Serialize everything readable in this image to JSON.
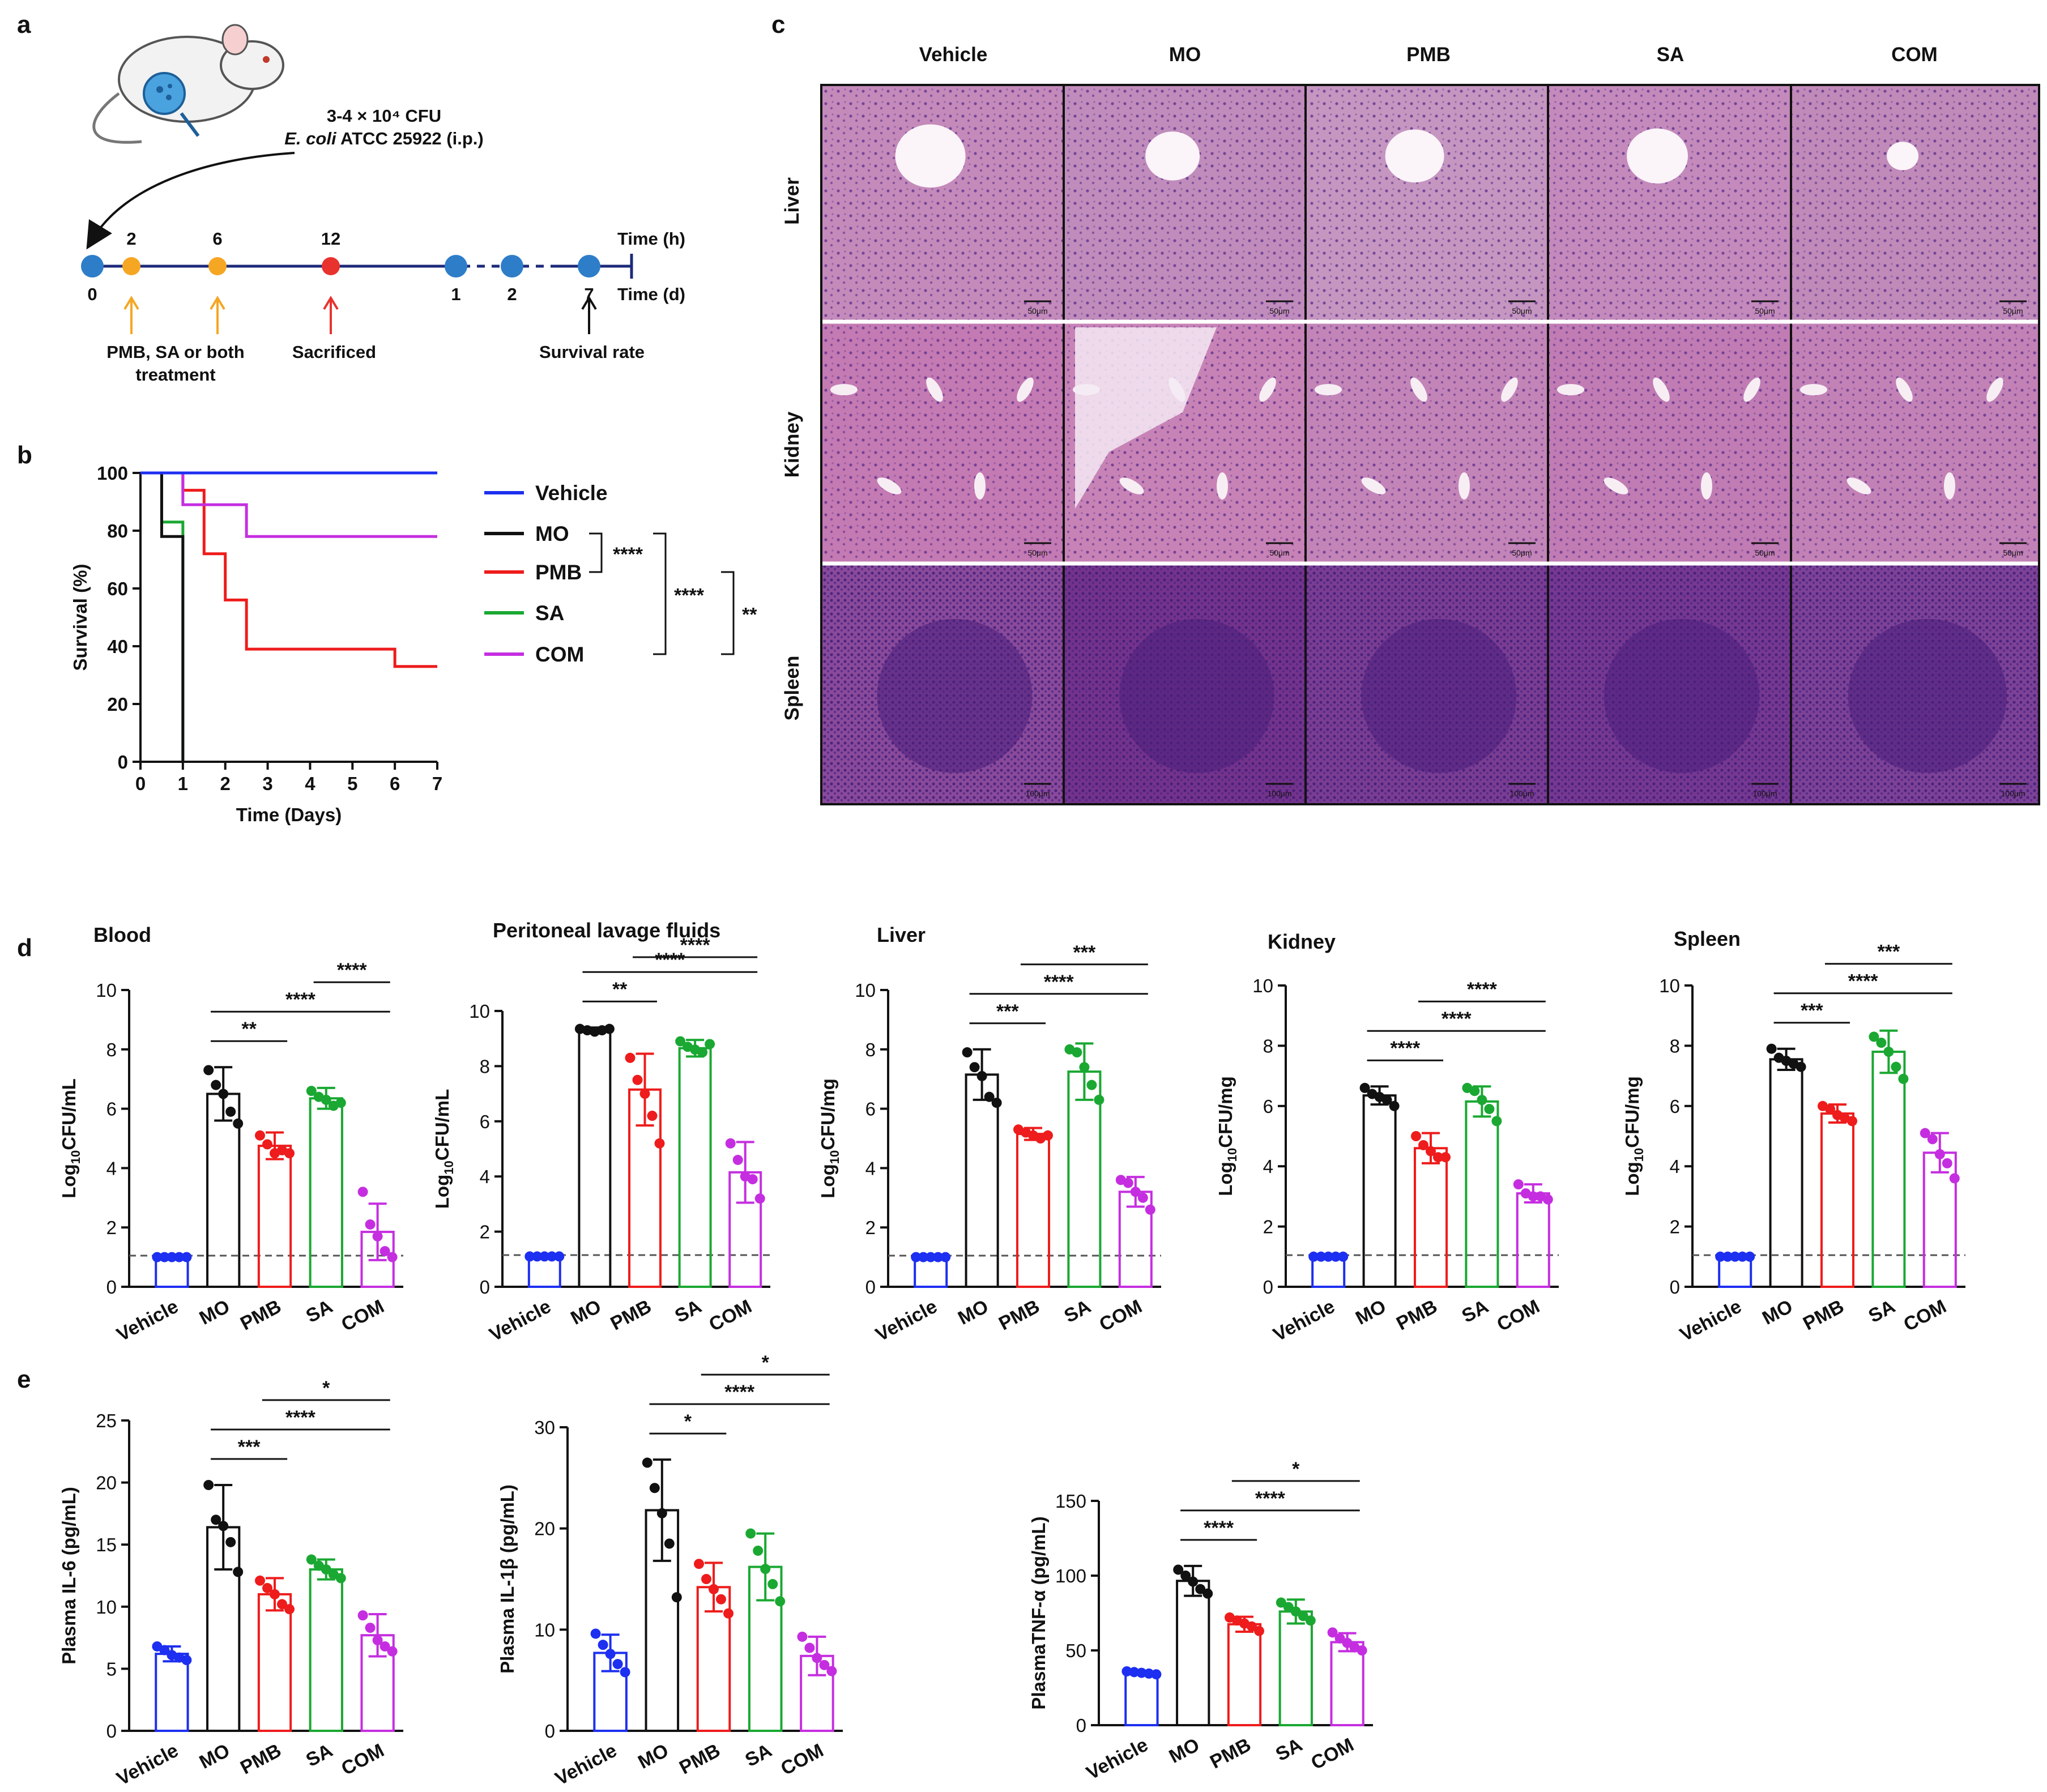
{
  "panel_labels": {
    "a": "a",
    "b": "b",
    "c": "c",
    "d": "d",
    "e": "e"
  },
  "colors": {
    "Vehicle": "#1d2ff0",
    "MO": "#111111",
    "PMB": "#ee1c1c",
    "SA": "#1aa832",
    "COM": "#c52ee0",
    "timeline": "#1d2a7a",
    "dot_blue": "#2e7dc9",
    "dot_orange": "#f5a623",
    "dot_red": "#e8322e",
    "tissue": "#a4488f"
  },
  "icons": {
    "mouse": "mouse-icon",
    "arrow": "arrow-up-icon"
  },
  "panel_a": {
    "infection_line1": "3-4 × 10⁴ CFU",
    "infection_species": "E. coli",
    "infection_strain": " ATCC 25922 (i.p.)",
    "timeline_hours": [
      "2",
      "6",
      "12"
    ],
    "timeline_days": [
      "0",
      "1",
      "2",
      "7"
    ],
    "time_h_label": "Time (h)",
    "time_d_label": "Time (d)",
    "treatment_line1": "PMB, SA or both",
    "treatment_line2": "treatment",
    "sacrificed_label": "Sacrificed",
    "survival_label": "Survival rate"
  },
  "panel_c": {
    "columns": [
      "Vehicle",
      "MO",
      "PMB",
      "SA",
      "COM"
    ],
    "rows": [
      "Liver",
      "Kidney",
      "Spleen"
    ],
    "scale_bars": [
      "50μm",
      "50μm",
      "100μm"
    ]
  },
  "chart_data": [
    {
      "id": "survival",
      "type": "line",
      "title": "",
      "xlabel": "Time (Days)",
      "ylabel": "Survival (%)",
      "xlim": [
        0,
        7
      ],
      "ylim": [
        0,
        100
      ],
      "xticks": [
        "0",
        "1",
        "2",
        "3",
        "4",
        "5",
        "6",
        "7"
      ],
      "yticks": [
        "0",
        "20",
        "40",
        "60",
        "80",
        "100"
      ],
      "series": [
        {
          "name": "Vehicle",
          "color": "#1d2ff0",
          "steps": [
            [
              0,
              100
            ],
            [
              7,
              100
            ]
          ]
        },
        {
          "name": "MO",
          "color": "#111111",
          "steps": [
            [
              0,
              100
            ],
            [
              0.5,
              100
            ],
            [
              0.5,
              78
            ],
            [
              1,
              78
            ],
            [
              1,
              0
            ]
          ]
        },
        {
          "name": "PMB",
          "color": "#ee1c1c",
          "steps": [
            [
              0,
              100
            ],
            [
              1,
              100
            ],
            [
              1,
              94
            ],
            [
              1.5,
              94
            ],
            [
              1.5,
              72
            ],
            [
              2,
              72
            ],
            [
              2,
              56
            ],
            [
              2.5,
              56
            ],
            [
              2.5,
              39
            ],
            [
              6,
              39
            ],
            [
              6,
              33
            ],
            [
              7,
              33
            ]
          ]
        },
        {
          "name": "SA",
          "color": "#1aa832",
          "steps": [
            [
              0,
              100
            ],
            [
              0.5,
              100
            ],
            [
              0.5,
              83
            ],
            [
              1,
              83
            ],
            [
              1,
              0
            ]
          ]
        },
        {
          "name": "COM",
          "color": "#c52ee0",
          "steps": [
            [
              0,
              100
            ],
            [
              1,
              100
            ],
            [
              1,
              89
            ],
            [
              2.5,
              89
            ],
            [
              2.5,
              78
            ],
            [
              7,
              78
            ]
          ]
        }
      ],
      "legend": [
        "Vehicle",
        "MO",
        "PMB",
        "SA",
        "COM"
      ],
      "significance": [
        "****",
        "****",
        "**"
      ]
    },
    {
      "id": "d_blood",
      "type": "bar",
      "title": "Blood",
      "ylabel": "Log10CFU/mL",
      "ylim": [
        0,
        10
      ],
      "yticks": [
        "0",
        "2",
        "4",
        "6",
        "8",
        "10"
      ],
      "categories": [
        "Vehicle",
        "MO",
        "PMB",
        "SA",
        "COM"
      ],
      "values": [
        1.0,
        6.5,
        4.75,
        6.35,
        1.85
      ],
      "errors": [
        0,
        0.9,
        0.45,
        0.35,
        0.95
      ],
      "points": [
        [
          1,
          1,
          1,
          1,
          1
        ],
        [
          7.3,
          6.8,
          6.5,
          5.9,
          5.5
        ],
        [
          5.1,
          4.8,
          4.5,
          4.6,
          4.5
        ],
        [
          6.6,
          6.4,
          6.3,
          6.1,
          6.2
        ],
        [
          3.2,
          2.1,
          1.7,
          1.2,
          1.0
        ]
      ],
      "threshold": 1.05,
      "sig": [
        {
          "a": 1,
          "b": 2,
          "label": "**"
        },
        {
          "a": 1,
          "b": 4,
          "label": "****"
        },
        {
          "a": 3,
          "b": 4,
          "label": "****"
        }
      ]
    },
    {
      "id": "d_plf",
      "type": "bar",
      "title": "Peritoneal lavage fluids",
      "ylabel": "Log10CFU/mL",
      "ylim": [
        0,
        10
      ],
      "yticks": [
        "0",
        "2",
        "4",
        "6",
        "8",
        "10"
      ],
      "categories": [
        "Vehicle",
        "MO",
        "PMB",
        "SA",
        "COM"
      ],
      "values": [
        1.1,
        9.3,
        7.15,
        8.65,
        4.15
      ],
      "errors": [
        0,
        0.1,
        1.3,
        0.3,
        1.1
      ],
      "points": [
        [
          1.1,
          1.1,
          1.1,
          1.1,
          1.1
        ],
        [
          9.35,
          9.3,
          9.25,
          9.3,
          9.35
        ],
        [
          8.3,
          7.5,
          7.0,
          6.2,
          5.2
        ],
        [
          8.9,
          8.7,
          8.6,
          8.5,
          8.8
        ],
        [
          5.2,
          4.6,
          4.0,
          3.9,
          3.2
        ]
      ],
      "threshold": 1.15,
      "sig": [
        {
          "a": 1,
          "b": 2,
          "label": "**"
        },
        {
          "a": 1,
          "b": 4,
          "label": "****"
        },
        {
          "a": 2,
          "b": 4,
          "label": "****"
        }
      ]
    },
    {
      "id": "d_liver",
      "type": "bar",
      "title": "Liver",
      "ylabel": "Log10CFU/mg",
      "ylim": [
        0,
        10
      ],
      "yticks": [
        "0",
        "2",
        "4",
        "6",
        "8",
        "10"
      ],
      "categories": [
        "Vehicle",
        "MO",
        "PMB",
        "SA",
        "COM"
      ],
      "values": [
        1.0,
        7.15,
        5.15,
        7.25,
        3.2
      ],
      "errors": [
        0,
        0.85,
        0.2,
        0.95,
        0.5
      ],
      "points": [
        [
          1,
          1,
          1,
          1,
          1
        ],
        [
          7.9,
          7.4,
          7.1,
          6.4,
          6.2
        ],
        [
          5.3,
          5.2,
          5.1,
          5.0,
          5.1
        ],
        [
          8.0,
          7.9,
          7.4,
          6.8,
          6.3
        ],
        [
          3.6,
          3.5,
          3.2,
          3.0,
          2.6
        ]
      ],
      "threshold": 1.05,
      "sig": [
        {
          "a": 1,
          "b": 2,
          "label": "***"
        },
        {
          "a": 1,
          "b": 4,
          "label": "****"
        },
        {
          "a": 2,
          "b": 4,
          "label": "***"
        }
      ]
    },
    {
      "id": "d_kidney",
      "type": "bar",
      "title": "Kidney",
      "ylabel": "Log10CFU/mg",
      "ylim": [
        0,
        10
      ],
      "yticks": [
        "0",
        "2",
        "4",
        "6",
        "8",
        "10"
      ],
      "categories": [
        "Vehicle",
        "MO",
        "PMB",
        "SA",
        "COM"
      ],
      "values": [
        1.0,
        6.35,
        4.6,
        6.15,
        3.1
      ],
      "errors": [
        0,
        0.3,
        0.5,
        0.5,
        0.3
      ],
      "points": [
        [
          1,
          1,
          1,
          1,
          1
        ],
        [
          6.6,
          6.4,
          6.3,
          6.2,
          6.0
        ],
        [
          5.0,
          4.7,
          4.5,
          4.3,
          4.3
        ],
        [
          6.6,
          6.5,
          6.2,
          5.9,
          5.5
        ],
        [
          3.4,
          3.1,
          3.0,
          3.0,
          2.9
        ]
      ],
      "threshold": 1.05,
      "sig": [
        {
          "a": 1,
          "b": 2,
          "label": "****"
        },
        {
          "a": 1,
          "b": 4,
          "label": "****"
        },
        {
          "a": 2,
          "b": 4,
          "label": "****"
        }
      ]
    },
    {
      "id": "d_spleen",
      "type": "bar",
      "title": "Spleen",
      "ylabel": "Log10CFU/mg",
      "ylim": [
        0,
        10
      ],
      "yticks": [
        "0",
        "2",
        "4",
        "6",
        "8",
        "10"
      ],
      "categories": [
        "Vehicle",
        "MO",
        "PMB",
        "SA",
        "COM"
      ],
      "values": [
        1.0,
        7.55,
        5.75,
        7.8,
        4.45
      ],
      "errors": [
        0,
        0.35,
        0.3,
        0.7,
        0.65
      ],
      "points": [
        [
          1,
          1,
          1,
          1,
          1
        ],
        [
          7.9,
          7.6,
          7.5,
          7.4,
          7.3
        ],
        [
          6.0,
          5.9,
          5.7,
          5.6,
          5.5
        ],
        [
          8.3,
          8.1,
          7.8,
          7.3,
          6.9
        ],
        [
          5.1,
          4.9,
          4.4,
          4.1,
          3.6
        ]
      ],
      "threshold": 1.05,
      "sig": [
        {
          "a": 1,
          "b": 2,
          "label": "***"
        },
        {
          "a": 1,
          "b": 4,
          "label": "****"
        },
        {
          "a": 2,
          "b": 4,
          "label": "***"
        }
      ]
    },
    {
      "id": "e_il6",
      "type": "bar",
      "title": "",
      "ylabel": "Plasma IL-6 (pg/mL)",
      "ylim": [
        0,
        25
      ],
      "yticks": [
        "0",
        "5",
        "10",
        "15",
        "20",
        "25"
      ],
      "categories": [
        "Vehicle",
        "MO",
        "PMB",
        "SA",
        "COM"
      ],
      "values": [
        6.2,
        16.4,
        11.0,
        13.0,
        7.7
      ],
      "errors": [
        0.6,
        3.4,
        1.3,
        0.8,
        1.7
      ],
      "points": [
        [
          6.8,
          6.5,
          6.1,
          5.9,
          5.7
        ],
        [
          19.8,
          17.0,
          16.5,
          15.2,
          12.8
        ],
        [
          12.1,
          11.5,
          11.0,
          10.2,
          9.8
        ],
        [
          13.8,
          13.3,
          13.0,
          12.6,
          12.3
        ],
        [
          9.3,
          8.3,
          7.3,
          6.8,
          6.4
        ]
      ],
      "threshold": null,
      "sig": [
        {
          "a": 1,
          "b": 2,
          "label": "***"
        },
        {
          "a": 1,
          "b": 4,
          "label": "****"
        },
        {
          "a": 2,
          "b": 4,
          "label": "*"
        }
      ]
    },
    {
      "id": "e_il1b",
      "type": "bar",
      "title": "",
      "ylabel": "Plasma IL-1β (pg/mL)",
      "ylim": [
        0,
        30
      ],
      "yticks": [
        "0",
        "10",
        "20",
        "30"
      ],
      "categories": [
        "Vehicle",
        "MO",
        "PMB",
        "SA",
        "COM"
      ],
      "values": [
        7.7,
        21.8,
        14.2,
        16.2,
        7.4
      ],
      "errors": [
        1.8,
        5.0,
        2.4,
        3.3,
        1.9
      ],
      "points": [
        [
          9.6,
          8.5,
          7.6,
          6.6,
          5.8
        ],
        [
          26.5,
          24.0,
          21.5,
          18.5,
          13.2
        ],
        [
          16.5,
          15.0,
          14.0,
          13.0,
          11.6
        ],
        [
          19.5,
          17.8,
          16.0,
          14.5,
          12.8
        ],
        [
          9.3,
          8.2,
          7.2,
          6.5,
          5.9
        ]
      ],
      "threshold": null,
      "sig": [
        {
          "a": 1,
          "b": 2,
          "label": "*"
        },
        {
          "a": 1,
          "b": 4,
          "label": "****"
        },
        {
          "a": 2,
          "b": 4,
          "label": "*"
        }
      ]
    },
    {
      "id": "e_tnf",
      "type": "bar",
      "title": "",
      "ylabel": "PlasmaTNF-α (pg/mL)",
      "ylim": [
        0,
        150
      ],
      "yticks": [
        "0",
        "50",
        "100",
        "150"
      ],
      "categories": [
        "Vehicle",
        "MO",
        "PMB",
        "SA",
        "COM"
      ],
      "values": [
        35.0,
        96.5,
        67.5,
        76.0,
        55.5
      ],
      "errors": [
        1.2,
        10.0,
        5.0,
        8.0,
        6.0
      ],
      "points": [
        [
          36,
          35.5,
          35,
          34.5,
          34
        ],
        [
          104,
          100,
          96,
          91,
          88
        ],
        [
          72,
          70,
          68,
          66,
          63
        ],
        [
          82,
          79,
          76,
          73,
          70
        ],
        [
          62,
          58,
          55,
          52,
          50
        ]
      ],
      "threshold": null,
      "sig": [
        {
          "a": 1,
          "b": 2,
          "label": "****"
        },
        {
          "a": 1,
          "b": 4,
          "label": "****"
        },
        {
          "a": 2,
          "b": 4,
          "label": "*"
        }
      ]
    }
  ]
}
